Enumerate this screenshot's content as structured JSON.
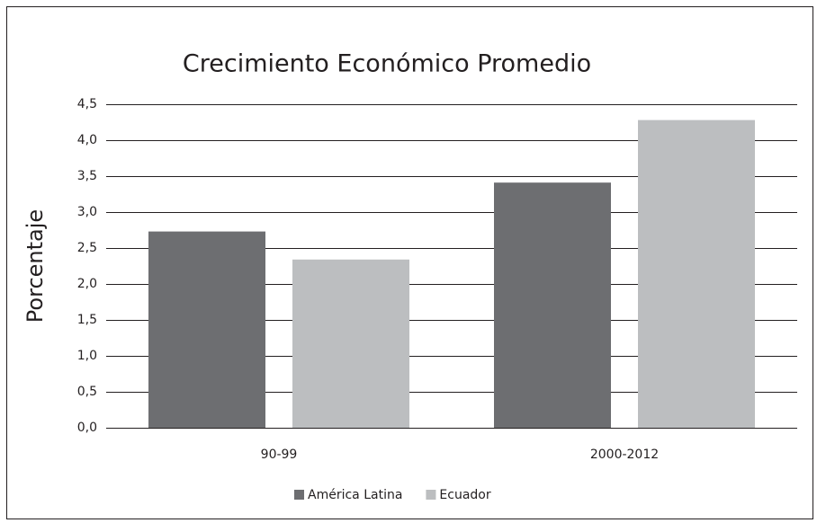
{
  "chart_data": {
    "type": "bar",
    "title": "Crecimiento Económico Promedio",
    "y_label": "Porcentaje",
    "categories": [
      "90-99",
      "2000-2012"
    ],
    "series": [
      {
        "name": "América Latina",
        "color": "#6d6e71",
        "values": [
          2.73,
          3.41
        ]
      },
      {
        "name": "Ecuador",
        "color": "#bcbec0",
        "values": [
          2.34,
          4.28
        ]
      }
    ],
    "ylim": [
      0,
      4.5
    ],
    "yticks": [
      {
        "value": 0,
        "label": "0,0"
      },
      {
        "value": 0.5,
        "label": "0,5"
      },
      {
        "value": 1,
        "label": "1,0"
      },
      {
        "value": 1.5,
        "label": "1,5"
      },
      {
        "value": 2,
        "label": "2,0"
      },
      {
        "value": 2.5,
        "label": "2,5"
      },
      {
        "value": 3,
        "label": "3,0"
      },
      {
        "value": 3.5,
        "label": "3,5"
      },
      {
        "value": 4,
        "label": "4,0"
      },
      {
        "value": 4.5,
        "label": "4,5"
      }
    ],
    "grid": true,
    "legend": "bottom"
  }
}
